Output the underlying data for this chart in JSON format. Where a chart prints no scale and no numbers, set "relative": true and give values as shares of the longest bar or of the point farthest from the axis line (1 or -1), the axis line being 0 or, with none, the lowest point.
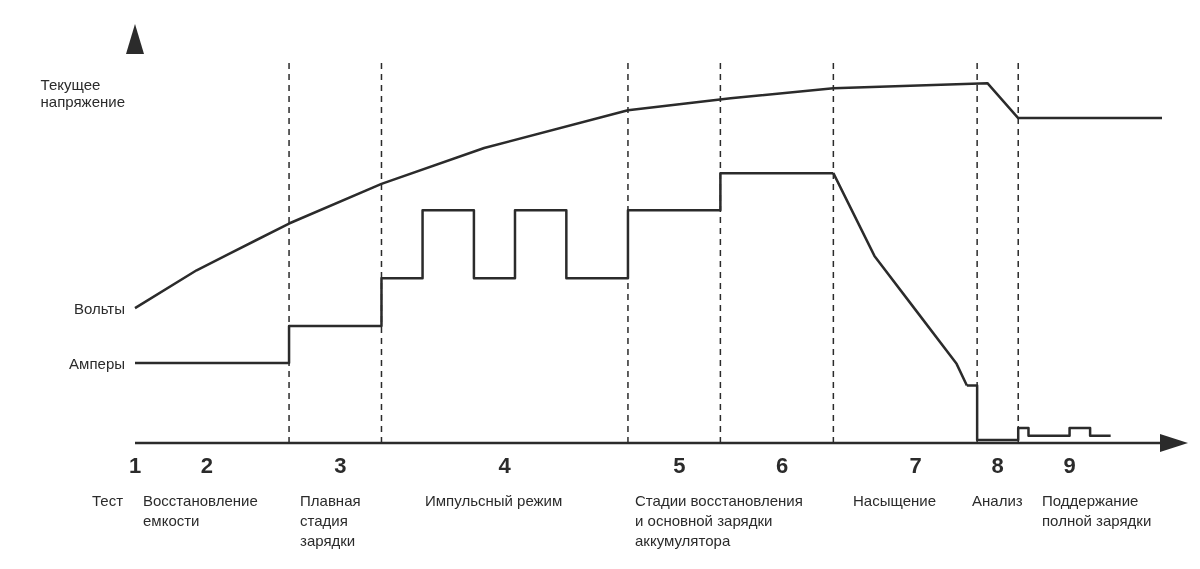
{
  "chart_data": {
    "type": "line",
    "relative": true,
    "grid": false,
    "legend": false,
    "marker": "none",
    "ylabel": "Текущее\nнапряжение",
    "categories": [
      "1",
      null,
      null,
      null,
      null,
      null,
      null,
      "2",
      null,
      null,
      null,
      null,
      null,
      null,
      null,
      null,
      null,
      null,
      null,
      null,
      "3",
      null,
      null,
      null,
      null,
      null,
      null,
      null,
      null,
      null,
      null,
      null,
      null,
      null,
      null,
      null,
      "4",
      null,
      null,
      null,
      null,
      null,
      null,
      null,
      null,
      null,
      null,
      null,
      null,
      null,
      null,
      null,
      null,
      "5",
      null,
      null,
      null,
      null,
      null,
      null,
      null,
      null,
      null,
      "6",
      null,
      null,
      null,
      null,
      null,
      null,
      null,
      null,
      null,
      null,
      null,
      null,
      "7",
      null,
      null,
      null,
      null,
      null,
      null,
      null,
      "8",
      null,
      null,
      null,
      null,
      null,
      null,
      "9",
      null,
      null,
      null,
      null,
      null,
      null,
      null,
      null,
      null
    ],
    "series": [
      {
        "name": "Вольты",
        "color": "#2b2b2b",
        "values": [
          0.375,
          null,
          null,
          null,
          null,
          null,
          0.48,
          null,
          null,
          null,
          null,
          null,
          null,
          null,
          null,
          0.61,
          null,
          null,
          null,
          null,
          null,
          null,
          null,
          null,
          0.72,
          null,
          null,
          null,
          null,
          null,
          null,
          null,
          null,
          null,
          0.82,
          null,
          null,
          null,
          null,
          null,
          null,
          null,
          null,
          null,
          null,
          null,
          null,
          null,
          0.925,
          null,
          null,
          null,
          null,
          null,
          null,
          null,
          null,
          null,
          0.958,
          null,
          null,
          null,
          null,
          null,
          null,
          null,
          null,
          null,
          0.986,
          null,
          null,
          null,
          null,
          null,
          null,
          null,
          null,
          null,
          null,
          null,
          null,
          null,
          null,
          1,
          null,
          null,
          0.903,
          null,
          null,
          null,
          null,
          null,
          null,
          null,
          null,
          null,
          null,
          null,
          null,
          null,
          0.903
        ]
      },
      {
        "name": "Амперы",
        "type": "step",
        "color": "#2b2b2b",
        "values": [
          0.222,
          0.222,
          0.222,
          0.222,
          0.222,
          0.222,
          0.222,
          0.222,
          0.222,
          0.222,
          0.222,
          0.222,
          0.222,
          0.222,
          0.222,
          0.325,
          0.325,
          0.325,
          0.325,
          0.325,
          0.325,
          0.325,
          0.325,
          0.325,
          0.458,
          0.458,
          0.458,
          0.458,
          0.647,
          0.647,
          0.647,
          0.647,
          0.647,
          0.458,
          0.458,
          0.458,
          0.458,
          0.647,
          0.647,
          0.647,
          0.647,
          0.647,
          0.458,
          0.458,
          0.458,
          0.458,
          0.458,
          0.458,
          0.647,
          0.647,
          0.647,
          0.647,
          0.647,
          0.647,
          0.647,
          0.647,
          0.647,
          0.75,
          0.75,
          0.75,
          0.75,
          0.75,
          0.75,
          0.75,
          0.75,
          0.75,
          0.75,
          0.75,
          0.75,
          null,
          null,
          null,
          null,
          null,
          null,
          null,
          null,
          null,
          null,
          null,
          null,
          null,
          null,
          null,
          null,
          null,
          null,
          null,
          null,
          null,
          null,
          null,
          null,
          null,
          null,
          null,
          null,
          null,
          null,
          null,
          null
        ]
      },
      {
        "color": "#2b2b2b",
        "values": [
          null,
          null,
          null,
          null,
          null,
          null,
          null,
          null,
          null,
          null,
          null,
          null,
          null,
          null,
          null,
          null,
          null,
          null,
          null,
          null,
          null,
          null,
          null,
          null,
          null,
          null,
          null,
          null,
          null,
          null,
          null,
          null,
          null,
          null,
          null,
          null,
          null,
          null,
          null,
          null,
          null,
          null,
          null,
          null,
          null,
          null,
          null,
          null,
          null,
          null,
          null,
          null,
          null,
          null,
          null,
          null,
          null,
          null,
          null,
          null,
          null,
          null,
          null,
          null,
          null,
          null,
          null,
          null,
          0.75,
          null,
          null,
          null,
          0.52,
          null,
          null,
          null,
          0.37,
          null,
          null,
          null,
          0.22,
          0.16,
          null,
          null,
          null,
          null,
          null,
          null,
          null,
          null,
          null,
          null,
          null,
          null,
          null,
          null,
          null,
          null,
          null,
          null,
          null
        ]
      },
      {
        "type": "step",
        "color": "#2b2b2b",
        "values": [
          null,
          null,
          null,
          null,
          null,
          null,
          null,
          null,
          null,
          null,
          null,
          null,
          null,
          null,
          null,
          null,
          null,
          null,
          null,
          null,
          null,
          null,
          null,
          null,
          null,
          null,
          null,
          null,
          null,
          null,
          null,
          null,
          null,
          null,
          null,
          null,
          null,
          null,
          null,
          null,
          null,
          null,
          null,
          null,
          null,
          null,
          null,
          null,
          null,
          null,
          null,
          null,
          null,
          null,
          null,
          null,
          null,
          null,
          null,
          null,
          null,
          null,
          null,
          null,
          null,
          null,
          null,
          null,
          null,
          null,
          null,
          null,
          null,
          null,
          null,
          null,
          null,
          null,
          null,
          null,
          null,
          0.16,
          0.008,
          0.008,
          0.008,
          0.008,
          0.042,
          0.02,
          0.02,
          0.02,
          0.02,
          0.042,
          0.042,
          0.02,
          0.02,
          0.02,
          null,
          null,
          null,
          null,
          null
        ]
      }
    ],
    "annotations": [
      "Тест",
      "Восстановление\nемкости",
      "Плавная\nстадия\nзарядки",
      "Импульсный режим",
      "Стадии восстановления\nи основной зарядки\nаккумулятора",
      "Насыщение",
      "Анализ",
      "Поддержание\nполной зарядки"
    ]
  }
}
